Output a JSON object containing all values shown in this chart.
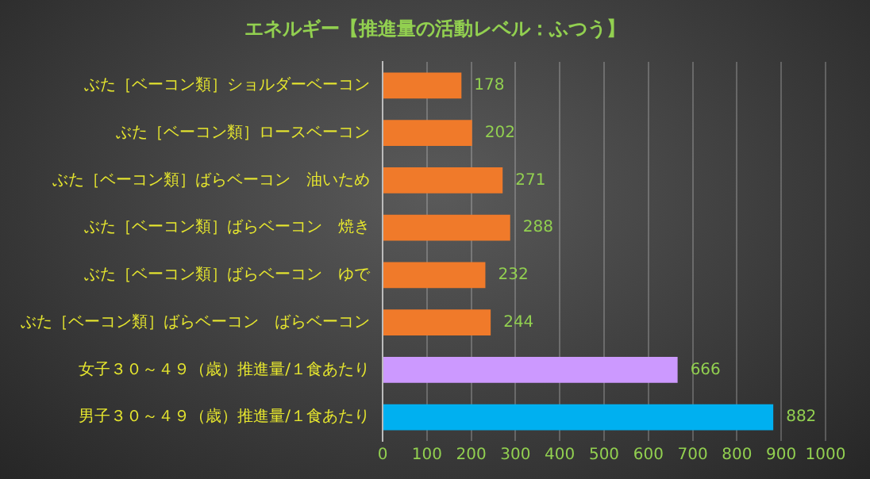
{
  "chart_data": {
    "type": "bar",
    "orientation": "horizontal",
    "title": "エネルギー【推進量の活動レベル：ふつう】",
    "categories": [
      "ぶた［ベーコン類］ショルダーベーコン",
      "ぶた［ベーコン類］ロースベーコン",
      "ぶた［ベーコン類］ばらベーコン　油いため",
      "ぶた［ベーコン類］ばらベーコン　焼き",
      "ぶた［ベーコン類］ばらベーコン　ゆで",
      "ぶた［ベーコン類］ばらベーコン　ばらベーコン",
      "女子３０～４９（歳）推進量/１食あたり",
      "男子３０～４９（歳）推進量/１食あたり"
    ],
    "values": [
      178,
      202,
      271,
      288,
      232,
      244,
      666,
      882
    ],
    "colors": [
      "#f07a2a",
      "#f07a2a",
      "#f07a2a",
      "#f07a2a",
      "#f07a2a",
      "#f07a2a",
      "#cc99ff",
      "#00b0f0"
    ],
    "xlim": [
      0,
      1000
    ],
    "xticks": [
      0,
      100,
      200,
      300,
      400,
      500,
      600,
      700,
      800,
      900,
      1000
    ],
    "grid": "x",
    "data_labels": true
  }
}
